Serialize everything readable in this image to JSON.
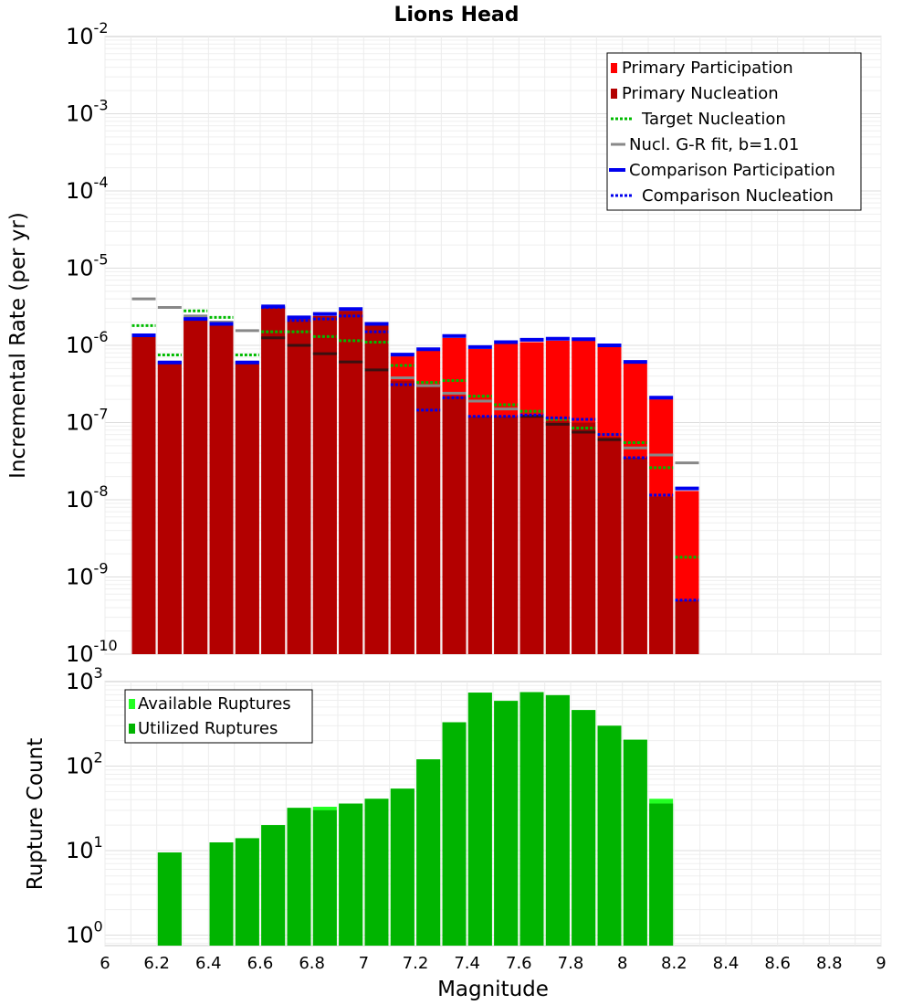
{
  "title": "Lions Head",
  "xlabel": "Magnitude",
  "x_ticks": [
    "6",
    "6.2",
    "6.4",
    "6.6",
    "6.8",
    "7",
    "7.2",
    "7.4",
    "7.6",
    "7.8",
    "8",
    "8.2",
    "8.4",
    "8.6",
    "8.8",
    "9"
  ],
  "chart_data": [
    {
      "type": "bar",
      "ylabel": "Incremental Rate (per yr)",
      "y_scale": "log",
      "ylim": [
        1e-10,
        0.01
      ],
      "xlim": [
        6,
        9
      ],
      "grid": true,
      "legend_position": "top-right",
      "y_ticks": [
        {
          "base": "10",
          "exp": "-2"
        },
        {
          "base": "10",
          "exp": "-3"
        },
        {
          "base": "10",
          "exp": "-4"
        },
        {
          "base": "10",
          "exp": "-5"
        },
        {
          "base": "10",
          "exp": "-6"
        },
        {
          "base": "10",
          "exp": "-7"
        },
        {
          "base": "10",
          "exp": "-8"
        },
        {
          "base": "10",
          "exp": "-9"
        },
        {
          "base": "10",
          "exp": "-10"
        }
      ],
      "legend": [
        {
          "label": "Primary Participation",
          "style": "box",
          "color": "#ff0000"
        },
        {
          "label": "Primary Nucleation",
          "style": "box",
          "color": "#b30000"
        },
        {
          "label": "Target Nucleation",
          "style": "dotted",
          "color": "#00bb00"
        },
        {
          "label": "Nucl. G-R fit, b=1.01",
          "style": "solid",
          "color": "#888888"
        },
        {
          "label": "Comparison Participation",
          "style": "solid-thick",
          "color": "#0000ee"
        },
        {
          "label": "Comparison Nucleation",
          "style": "dotted",
          "color": "#0000ee"
        }
      ],
      "x": [
        6.15,
        6.25,
        6.35,
        6.45,
        6.55,
        6.65,
        6.75,
        6.85,
        6.95,
        7.05,
        7.15,
        7.25,
        7.35,
        7.45,
        7.55,
        7.65,
        7.75,
        7.85,
        7.95,
        8.05,
        8.15,
        8.25
      ],
      "series": [
        {
          "name": "Primary Participation",
          "values": [
            1.3e-06,
            5.8e-07,
            2.1e-06,
            1.8e-06,
            5.8e-07,
            3.1e-06,
            2.2e-06,
            2.4e-06,
            2.8e-06,
            1.8e-06,
            7.2e-07,
            8.5e-07,
            1.25e-06,
            9e-07,
            1.05e-06,
            1.1e-06,
            1.15e-06,
            1.15e-06,
            9.5e-07,
            5.8e-07,
            2e-07,
            1.3e-08
          ]
        },
        {
          "name": "Primary Nucleation",
          "values": [
            1.3e-06,
            5.8e-07,
            2.1e-06,
            1.8e-06,
            5.8e-07,
            3.1e-06,
            2.2e-06,
            2.4e-06,
            2.8e-06,
            1.8e-06,
            3.5e-07,
            3e-07,
            2.2e-07,
            1.2e-07,
            1.2e-07,
            1.25e-07,
            1.05e-07,
            1e-07,
            6.5e-08,
            3.5e-08,
            1.1e-08,
            5e-10
          ]
        },
        {
          "name": "Target Nucleation",
          "values": [
            1.8e-06,
            7.5e-07,
            2.8e-06,
            2.3e-06,
            7.5e-07,
            1.5e-06,
            1.5e-06,
            1.3e-06,
            1.15e-06,
            1.1e-06,
            5.5e-07,
            3.3e-07,
            3.5e-07,
            2.2e-07,
            1.7e-07,
            1.4e-07,
            1.1e-07,
            8.5e-08,
            7e-08,
            5.5e-08,
            2.6e-08,
            1.8e-09
          ]
        },
        {
          "name": "Nucl. G-R fit, b=1.01",
          "values": [
            4e-06,
            3.1e-06,
            2.4e-06,
            2e-06,
            1.55e-06,
            1.25e-06,
            1e-06,
            7.8e-07,
            6.1e-07,
            4.8e-07,
            3.8e-07,
            3e-07,
            2.4e-07,
            1.9e-07,
            1.5e-07,
            1.2e-07,
            9.5e-08,
            7.5e-08,
            6e-08,
            4.7e-08,
            3.8e-08,
            3e-08
          ]
        },
        {
          "name": "Comparison Participation",
          "values": [
            1.35e-06,
            6e-07,
            2.2e-06,
            1.9e-06,
            6e-07,
            3.2e-06,
            2.3e-06,
            2.55e-06,
            2.95e-06,
            1.9e-06,
            7.6e-07,
            8.9e-07,
            1.32e-06,
            9.5e-07,
            1.1e-06,
            1.18e-06,
            1.22e-06,
            1.2e-06,
            1e-06,
            6.1e-07,
            2.1e-07,
            1.4e-08
          ]
        },
        {
          "name": "Comparison Nucleation",
          "values": [
            1.35e-06,
            6e-07,
            2.2e-06,
            1.9e-06,
            6e-07,
            3.1e-06,
            2.1e-06,
            2.2e-06,
            2.4e-06,
            1.5e-06,
            3.1e-07,
            1.45e-07,
            2.1e-07,
            1.2e-07,
            1.2e-07,
            1.25e-07,
            1.15e-07,
            1.1e-07,
            7e-08,
            3.5e-08,
            1.15e-08,
            5e-10
          ]
        }
      ]
    },
    {
      "type": "bar",
      "ylabel": "Rupture Count",
      "y_scale": "log",
      "ylim": [
        0.75,
        1000
      ],
      "xlim": [
        6,
        9
      ],
      "grid": true,
      "legend_position": "top-left",
      "y_ticks": [
        {
          "base": "10",
          "exp": "3"
        },
        {
          "base": "10",
          "exp": "2"
        },
        {
          "base": "10",
          "exp": "1"
        },
        {
          "base": "10",
          "exp": "0"
        }
      ],
      "legend": [
        {
          "label": "Available Ruptures",
          "style": "box",
          "color": "#22ff22"
        },
        {
          "label": "Utilized Ruptures",
          "style": "box",
          "color": "#00b400"
        }
      ],
      "x": [
        6.25,
        6.35,
        6.45,
        6.55,
        6.65,
        6.75,
        6.85,
        6.95,
        7.05,
        7.15,
        7.25,
        7.35,
        7.45,
        7.55,
        7.65,
        7.75,
        7.85,
        7.95,
        8.05,
        8.15
      ],
      "series": [
        {
          "name": "Available Ruptures",
          "values": [
            9.5,
            0,
            12.5,
            14,
            20,
            32,
            33,
            36,
            41,
            54,
            120,
            330,
            740,
            590,
            750,
            690,
            460,
            300,
            205,
            41
          ]
        },
        {
          "name": "Utilized Ruptures",
          "values": [
            9.5,
            0,
            12.5,
            14,
            20,
            32,
            30,
            36,
            41,
            54,
            120,
            330,
            740,
            590,
            750,
            690,
            460,
            300,
            205,
            36
          ]
        }
      ]
    }
  ]
}
